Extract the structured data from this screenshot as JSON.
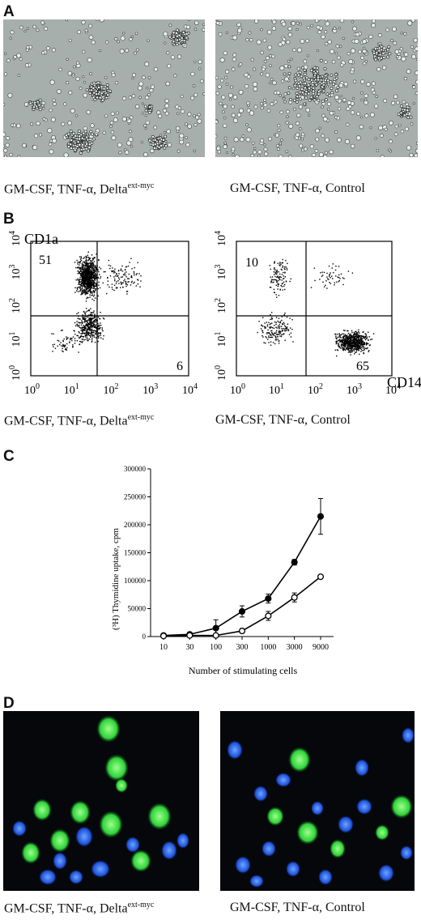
{
  "panelA": {
    "letter": "A",
    "left_caption": {
      "prefix": "GM-CSF, TNF-α, Delta",
      "sup": "ext-myc"
    },
    "right_caption": "GM-CSF, TNF-α, Control"
  },
  "panelB": {
    "letter": "B",
    "y_label": "CD1a",
    "x_label": "CD14",
    "left_caption": {
      "prefix": "GM-CSF, TNF-α, Delta",
      "sup": "ext-myc"
    },
    "right_caption": "GM-CSF, TNF-α, Control",
    "left_upper_left": "51",
    "left_lower_right": "6",
    "right_upper_left": "10",
    "right_lower_right": "65"
  },
  "panelC": {
    "letter": "C"
  },
  "panelD": {
    "letter": "D",
    "left_caption": {
      "prefix": "GM-CSF, TNF-α, Delta",
      "sup": "ext-myc"
    },
    "right_caption": "GM-CSF, TNF-α, Control"
  },
  "chart_data": {
    "type": "line",
    "categories": [
      "10",
      "30",
      "100",
      "300",
      "1000",
      "3000",
      "9000"
    ],
    "xlabel": "Number of stimulating cells",
    "ylabel": "(³H) Thymidine uptake, cpm",
    "ylim": [
      0,
      300000
    ],
    "yticks": [
      "0",
      "50000",
      "100000",
      "150000",
      "200000",
      "250000",
      "300000"
    ],
    "grid": false,
    "series": [
      {
        "marker": "filled",
        "values": [
          2000,
          4000,
          15000,
          45000,
          68000,
          133000,
          215000
        ],
        "errors": [
          1500,
          2000,
          15000,
          10000,
          8000,
          5000,
          32000
        ]
      },
      {
        "marker": "open",
        "values": [
          1000,
          2000,
          2000,
          10000,
          37000,
          70000,
          107000
        ],
        "errors": [
          800,
          1000,
          1000,
          4000,
          8000,
          8000,
          3000
        ]
      }
    ]
  }
}
